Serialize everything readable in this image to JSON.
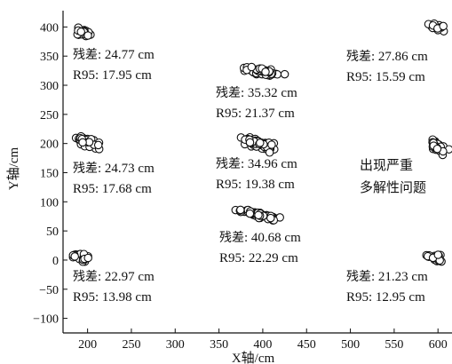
{
  "chart_data": {
    "type": "scatter",
    "title": "",
    "xlabel": "X轴/cm",
    "ylabel": "Y轴/cm",
    "xlim": [
      172,
      616
    ],
    "ylim": [
      -125,
      428
    ],
    "xticks": [
      200,
      250,
      300,
      350,
      400,
      450,
      500,
      550,
      600
    ],
    "yticks": [
      -100,
      -50,
      0,
      50,
      100,
      150,
      200,
      250,
      300,
      350,
      400
    ],
    "grid": false,
    "legend": "none",
    "marker": "open-circle",
    "colors": {
      "marker_stroke": "#111111",
      "axis": "#111111",
      "background": "#ffffff"
    },
    "clusters": [
      {
        "center": [
          195,
          390
        ],
        "spread": [
          18,
          9
        ],
        "slope": -0.4,
        "count": 32
      },
      {
        "center": [
          598,
          400
        ],
        "spread": [
          14,
          7
        ],
        "slope": -0.3,
        "count": 22
      },
      {
        "center": [
          400,
          323
        ],
        "spread": [
          28,
          8
        ],
        "slope": -0.15,
        "count": 50
      },
      {
        "center": [
          198,
          205
        ],
        "spread": [
          20,
          11
        ],
        "slope": -0.55,
        "count": 38
      },
      {
        "center": [
          395,
          200
        ],
        "spread": [
          26,
          12
        ],
        "slope": -0.4,
        "count": 55
      },
      {
        "center": [
          600,
          195
        ],
        "spread": [
          16,
          14
        ],
        "slope": -0.6,
        "count": 30
      },
      {
        "center": [
          395,
          78
        ],
        "spread": [
          30,
          8
        ],
        "slope": -0.35,
        "count": 50
      },
      {
        "center": [
          192,
          5
        ],
        "spread": [
          14,
          10
        ],
        "slope": -0.3,
        "count": 26
      },
      {
        "center": [
          598,
          3
        ],
        "spread": [
          14,
          9
        ],
        "slope": -0.2,
        "count": 24
      }
    ],
    "annotations": [
      {
        "label": "残差",
        "residual": "24.77 cm",
        "r95": "R95: 17.95 cm"
      },
      {
        "label": "残差",
        "residual": "35.32 cm",
        "r95": "R95: 21.37 cm"
      },
      {
        "label": "残差",
        "residual": "27.86 cm",
        "r95": "R95: 15.59 cm"
      },
      {
        "label": "残差",
        "residual": "24.73 cm",
        "r95": "R95: 17.68 cm"
      },
      {
        "label": "残差",
        "residual": "34.96 cm",
        "r95": "R95: 19.38 cm"
      },
      {
        "label": "残差",
        "residual": "40.68 cm",
        "r95": "R95: 22.29 cm"
      },
      {
        "label": "残差",
        "residual": "22.97 cm",
        "r95": "R95: 13.98 cm"
      },
      {
        "label": "残差",
        "residual": "21.23 cm",
        "r95": "R95: 12.95 cm"
      }
    ],
    "note_lines": [
      "出现严重",
      "多解性问题"
    ]
  }
}
